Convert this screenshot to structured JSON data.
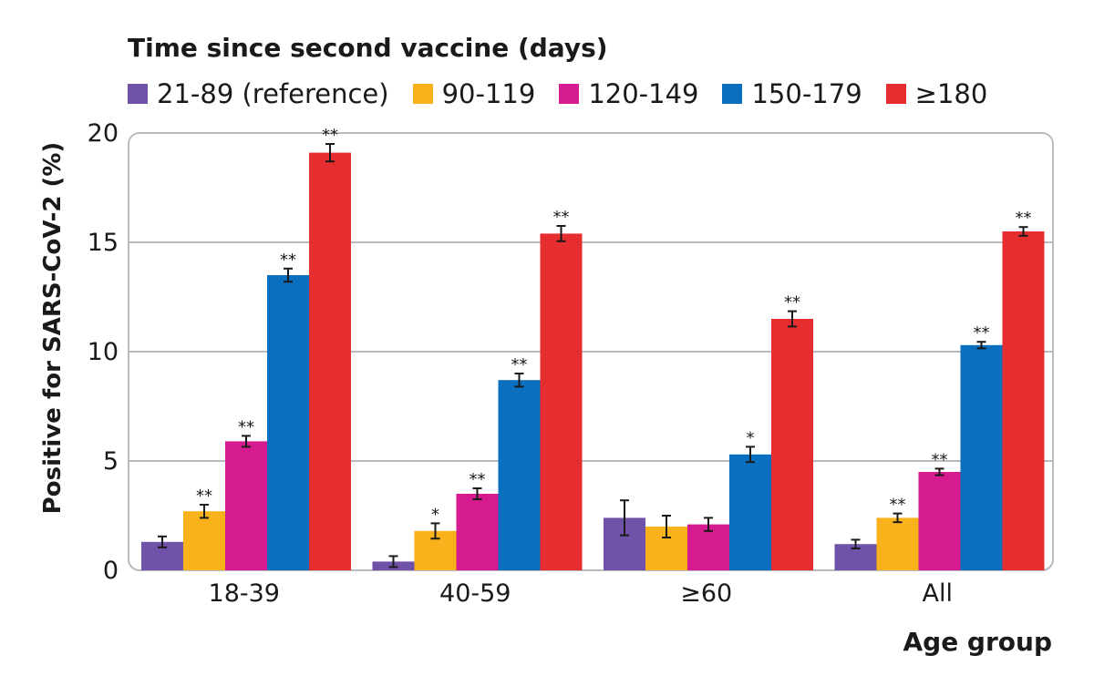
{
  "chart_data": {
    "type": "bar",
    "legend_title": "Time since second vaccine (days)",
    "xlabel": "Age group",
    "ylabel": "Positive for SARS-CoV-2 (%)",
    "ylim": [
      0,
      20
    ],
    "yticks": [
      "0",
      "5",
      "10",
      "15",
      "20"
    ],
    "categories": [
      "18-39",
      "40-59",
      "≥60",
      "All"
    ],
    "grid": true,
    "legend_position": "top",
    "series": [
      {
        "name": "21-89 (reference)",
        "color": "#7052a8",
        "values": [
          1.3,
          0.4,
          2.4,
          1.2
        ],
        "err": [
          0.25,
          0.25,
          0.8,
          0.2
        ],
        "sig": [
          "",
          "",
          "",
          ""
        ]
      },
      {
        "name": "90-119",
        "color": "#f9b21c",
        "values": [
          2.7,
          1.8,
          2.0,
          2.4
        ],
        "err": [
          0.3,
          0.35,
          0.5,
          0.2
        ],
        "sig": [
          "**",
          "*",
          "",
          "**"
        ]
      },
      {
        "name": "120-149",
        "color": "#d61a8f",
        "values": [
          5.9,
          3.5,
          2.1,
          4.5
        ],
        "err": [
          0.25,
          0.25,
          0.3,
          0.15
        ],
        "sig": [
          "**",
          "**",
          "",
          "**"
        ]
      },
      {
        "name": "150-179",
        "color": "#0b6fbf",
        "values": [
          13.5,
          8.7,
          5.3,
          10.3
        ],
        "err": [
          0.3,
          0.3,
          0.35,
          0.15
        ],
        "sig": [
          "**",
          "**",
          "*",
          "**"
        ]
      },
      {
        "name": "≥180",
        "color": "#e62e30",
        "values": [
          19.1,
          15.4,
          11.5,
          15.5
        ],
        "err": [
          0.4,
          0.35,
          0.35,
          0.2
        ],
        "sig": [
          "**",
          "**",
          "**",
          "**"
        ]
      }
    ]
  }
}
